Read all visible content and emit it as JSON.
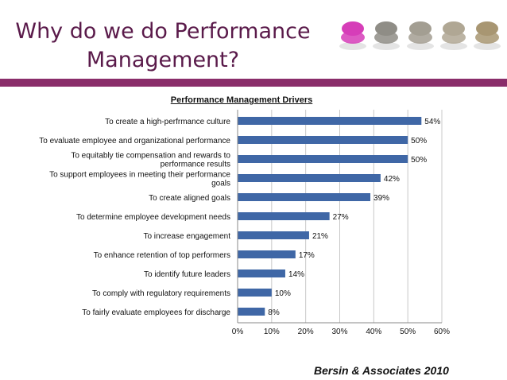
{
  "slide": {
    "title_line1": "Why do we do Performance",
    "title_line2": "Management?",
    "source": "Bersin & Associates 2010",
    "decoration_colors": [
      "#d63db8",
      "#8f8d86",
      "#a39e92",
      "#b0a794",
      "#a89672"
    ]
  },
  "chart_data": {
    "type": "bar",
    "orientation": "horizontal",
    "title": "Performance Management Drivers",
    "categories": [
      [
        "To create a high-perfrmance culture"
      ],
      [
        "To evaluate employee and organizational performance"
      ],
      [
        "To equitably tie compensation and rewards to",
        "performance results"
      ],
      [
        "To support employees in meeting their performance",
        "goals"
      ],
      [
        "To create aligned goals"
      ],
      [
        "To determine employee development needs"
      ],
      [
        "To increase engagement"
      ],
      [
        "To enhance retention of top performers"
      ],
      [
        "To identify future leaders"
      ],
      [
        "To comply with regulatory requirements"
      ],
      [
        "To fairly evaluate employees for discharge"
      ]
    ],
    "values": [
      54,
      50,
      50,
      42,
      39,
      27,
      21,
      17,
      14,
      10,
      8
    ],
    "value_labels": [
      "54%",
      "50%",
      "50%",
      "42%",
      "39%",
      "27%",
      "21%",
      "17%",
      "14%",
      "10%",
      "8%"
    ],
    "xlim": [
      0,
      60
    ],
    "xticks": [
      "0%",
      "10%",
      "20%",
      "30%",
      "40%",
      "50%",
      "60%"
    ],
    "grid": "vertical",
    "bar_color": "#3f67a6"
  }
}
